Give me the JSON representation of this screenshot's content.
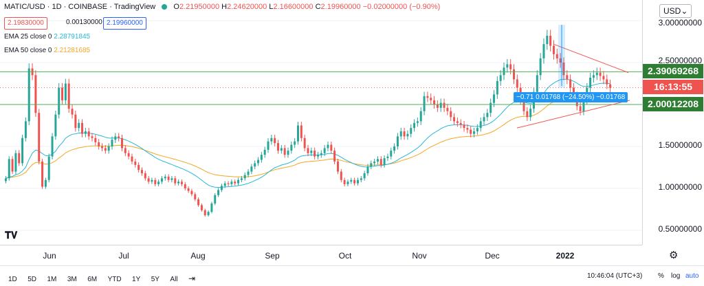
{
  "header": {
    "symbol": "MATIC/USD · 1D · COINBASE · TradingView",
    "open_label": "O",
    "open": "2.21950000",
    "high_label": "H",
    "high": "2.24620000",
    "low_label": "L",
    "low": "2.16600000",
    "close_label": "C",
    "close": "2.19960000",
    "change": "−0.02000000 (−0.90%)",
    "bid": "2.19830000",
    "spread": "0.00130000",
    "ask": "2.19960000"
  },
  "indicators": [
    {
      "label": "EMA 25 close 0",
      "value": "2.28791845",
      "color": "#26b7d8"
    },
    {
      "label": "EMA 50 close 0",
      "value": "2.21281685",
      "color": "#f5a623"
    }
  ],
  "currency_button": "USD⌄",
  "price_axis": {
    "labels": [
      "3.00000000",
      "2.50000000",
      "1.50000000",
      "1.00000000",
      "0.50000000"
    ],
    "tag_upper": "2.39069268",
    "tag_countdown": "16:13:55",
    "tag_lower": "2.00012208"
  },
  "measure_label": "−0.71 0.01768 (−24.50%) −0.01768",
  "time_axis": [
    "Jun",
    "Jul",
    "Aug",
    "Sep",
    "Oct",
    "Nov",
    "Dec",
    "2022"
  ],
  "bottom_bar": {
    "ranges": [
      "1D",
      "5D",
      "1M",
      "3M",
      "6M",
      "YTD",
      "1Y",
      "5Y",
      "All"
    ],
    "clock": "10:46:04 (UTC+3)",
    "percent": "%",
    "log": "log",
    "auto": "auto"
  },
  "colors": {
    "up": "#26a69a",
    "down": "#ef5350",
    "level": "#4caf50",
    "triangle": "#ef5350"
  },
  "chart_data": {
    "type": "candlestick",
    "title": "MATIC/USD · 1D · COINBASE",
    "ylim": [
      0.3,
      3.2
    ],
    "y_ticks": [
      0.5,
      1.0,
      1.5,
      2.5,
      3.0
    ],
    "x_labels": [
      "Jun",
      "Jul",
      "Aug",
      "Sep",
      "Oct",
      "Nov",
      "Dec",
      "2022"
    ],
    "horizontal_levels": [
      2.39069268,
      2.00012208
    ],
    "last_price": 2.1996,
    "series": [
      {
        "name": "price",
        "values": [
          1.12,
          1.35,
          1.2,
          1.42,
          1.3,
          1.6,
          1.8,
          2.43,
          2.35,
          1.9,
          1.32,
          1.02,
          1.1,
          1.38,
          1.62,
          1.88,
          2.2,
          2.05,
          2.25,
          1.95,
          1.88,
          1.72,
          1.78,
          1.65,
          1.68,
          1.62,
          1.6,
          1.55,
          1.5,
          1.48,
          1.45,
          1.5,
          1.58,
          1.62,
          1.6,
          1.48,
          1.42,
          1.38,
          1.32,
          1.28,
          1.22,
          1.18,
          1.12,
          1.08,
          1.1,
          1.05,
          1.08,
          1.12,
          1.14,
          1.1,
          1.12,
          1.06,
          1.08,
          1.05,
          1.0,
          0.97,
          0.93,
          0.87,
          0.8,
          0.74,
          0.68,
          0.72,
          0.82,
          0.92,
          0.98,
          1.03,
          1.06,
          1.05,
          1.08,
          1.06,
          1.1,
          1.12,
          1.16,
          1.2,
          1.26,
          1.3,
          1.34,
          1.4,
          1.46,
          1.56,
          1.6,
          1.54,
          1.45,
          1.48,
          1.4,
          1.45,
          1.52,
          1.56,
          1.75,
          1.6,
          1.48,
          1.42,
          1.45,
          1.38,
          1.4,
          1.42,
          1.48,
          1.52,
          1.45,
          1.32,
          1.2,
          1.1,
          1.05,
          1.08,
          1.1,
          1.06,
          1.1,
          1.12,
          1.18,
          1.26,
          1.3,
          1.32,
          1.35,
          1.28,
          1.36,
          1.38,
          1.45,
          1.5,
          1.62,
          1.68,
          1.62,
          1.65,
          1.72,
          1.78,
          1.8,
          1.92,
          2.1,
          2.08,
          2.05,
          2.0,
          1.96,
          2.02,
          1.96,
          1.92,
          1.85,
          1.8,
          1.78,
          1.76,
          1.72,
          1.7,
          1.65,
          1.68,
          1.72,
          1.8,
          1.85,
          1.9,
          2.02,
          2.12,
          2.28,
          2.35,
          2.44,
          2.48,
          2.42,
          2.3,
          2.2,
          2.05,
          1.92,
          1.85,
          1.95,
          2.15,
          2.35,
          2.55,
          2.72,
          2.82,
          2.7,
          2.6,
          2.55,
          2.5,
          2.35,
          2.3,
          2.2,
          2.1,
          1.98,
          1.92,
          2.05,
          2.2,
          2.32,
          2.35,
          2.38,
          2.34,
          2.3,
          2.24,
          2.2
        ]
      },
      {
        "name": "EMA 25",
        "values": [
          2.2879
        ]
      },
      {
        "name": "EMA 50",
        "values": [
          2.2128
        ]
      }
    ]
  }
}
